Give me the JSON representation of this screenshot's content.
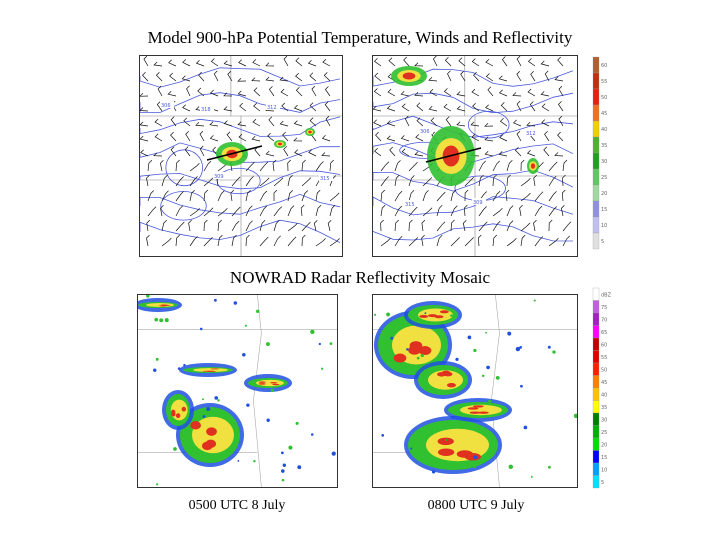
{
  "titles": {
    "top": "Model 900-hPa Potential Temperature, Winds and Reflectivity",
    "middle": "NOWRAD Radar Reflectivity Mosaic"
  },
  "captions": {
    "left": "0500 UTC 8 July",
    "right": "0800 UTC 9 July"
  },
  "model_colorbar": {
    "labels": [
      "60",
      "55",
      "50",
      "45",
      "40",
      "35",
      "30",
      "25",
      "20",
      "15",
      "10",
      "5"
    ],
    "colors": [
      "#b06030",
      "#c03010",
      "#e82010",
      "#f07020",
      "#f0d000",
      "#50b030",
      "#20a020",
      "#60c860",
      "#a0d8a0",
      "#9090e0",
      "#c0c0f0",
      "#e0e0e0"
    ]
  },
  "radar_colorbar": {
    "labels": [
      "dBZ",
      "75",
      "70",
      "65",
      "60",
      "55",
      "50",
      "45",
      "40",
      "35",
      "30",
      "25",
      "20",
      "15",
      "10",
      "5"
    ],
    "colors": [
      "#ffffff",
      "#c060e0",
      "#a020c0",
      "#ff00ff",
      "#c00000",
      "#e00000",
      "#ff2000",
      "#ff8000",
      "#ffc000",
      "#ffff00",
      "#008000",
      "#00b000",
      "#00e000",
      "#0000ff",
      "#00a0ff",
      "#00e0ff"
    ]
  },
  "reflectivity_palette": {
    "light": "#30c030",
    "moderate": "#f0e040",
    "heavy": "#e03020",
    "outer": "#2050e0",
    "edge": "#40e0e0"
  },
  "contour_labels": {
    "model_left": [
      "306",
      "309",
      "312",
      "315",
      "318"
    ],
    "model_right": [
      "306",
      "309",
      "312",
      "315"
    ]
  }
}
